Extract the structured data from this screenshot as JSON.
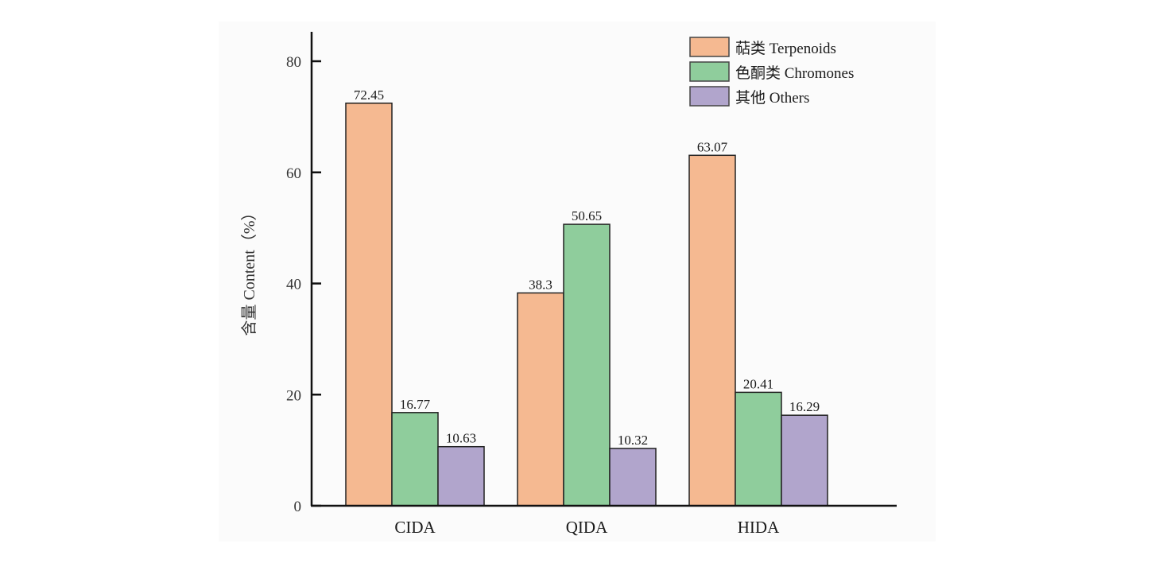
{
  "chart_data": {
    "type": "bar",
    "title": "",
    "xlabel": "",
    "ylabel": "含量 Content（%）",
    "ylim": [
      0,
      85
    ],
    "yticks": [
      0,
      20,
      40,
      60,
      80
    ],
    "grid": false,
    "legend_position": "top-right",
    "categories": [
      "CIDA",
      "QIDA",
      "HIDA"
    ],
    "series": [
      {
        "name": "萜类 Terpenoids",
        "color": "#f5b991",
        "values": [
          72.45,
          38.3,
          63.07
        ],
        "labels": [
          "72.45",
          "38.3",
          "63.07"
        ]
      },
      {
        "name": "色酮类 Chromones",
        "color": "#8fcd9c",
        "values": [
          16.77,
          50.65,
          20.41
        ],
        "labels": [
          "16.77",
          "50.65",
          "20.41"
        ]
      },
      {
        "name": "其他 Others",
        "color": "#b1a5cc",
        "values": [
          10.63,
          10.32,
          16.29
        ],
        "labels": [
          "10.63",
          "10.32",
          "16.29"
        ]
      }
    ]
  }
}
